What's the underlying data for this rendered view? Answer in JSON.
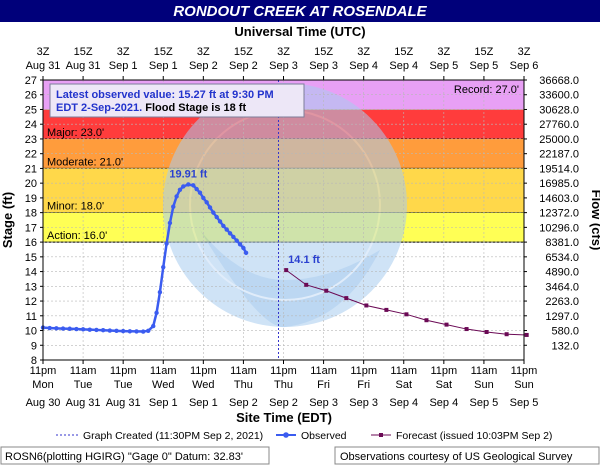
{
  "header": {
    "title": "RONDOUT CREEK AT ROSENDALE"
  },
  "axes": {
    "top_title": "Universal Time (UTC)",
    "bottom_title": "Site Time (EDT)",
    "left_title": "Stage (ft)",
    "right_title": "Flow (cfs)"
  },
  "info_box": {
    "line1": "Latest observed value: 15.27 ft at 9:30 PM",
    "line2a": "EDT 2-Sep-2021.",
    "line2b": " Flood Stage is 18 ft"
  },
  "record_label": "Record: 27.0'",
  "thresholds": [
    {
      "name": "Major: 23.0'",
      "stage": 23.0,
      "upper": 27.0,
      "color": "#ff3c3c"
    },
    {
      "name": "Moderate: 21.0'",
      "stage": 21.0,
      "upper": 23.0,
      "color": "#ff9c3c"
    },
    {
      "name": "Minor: 18.0'",
      "stage": 18.0,
      "upper": 21.0,
      "color": "#ffd84a"
    },
    {
      "name": "Action: 16.0'",
      "stage": 16.0,
      "upper": 18.0,
      "color": "#ffff55"
    }
  ],
  "colors": {
    "title_bar": "#00007a",
    "record_band": "#e8a0f5",
    "observed": "#3b5cf0",
    "forecast": "#6b0a55",
    "chart_frame": "#000000"
  },
  "chart_data": {
    "type": "line",
    "title": "RONDOUT CREEK AT ROSENDALE",
    "xlabel": "Site Time (EDT)",
    "ylabel": "Stage (ft)",
    "y2label": "Flow (cfs)",
    "x2label": "Universal Time (UTC)",
    "ylim": [
      8,
      27
    ],
    "grid": true,
    "x_ticks_bottom": [
      {
        "t1": "11pm",
        "t2": "Mon",
        "t3": "Aug 30"
      },
      {
        "t1": "11am",
        "t2": "Tue",
        "t3": "Aug 31"
      },
      {
        "t1": "11pm",
        "t2": "Tue",
        "t3": "Aug 31"
      },
      {
        "t1": "11am",
        "t2": "Wed",
        "t3": "Sep 1"
      },
      {
        "t1": "11pm",
        "t2": "Wed",
        "t3": "Sep 1"
      },
      {
        "t1": "11am",
        "t2": "Thu",
        "t3": "Sep 2"
      },
      {
        "t1": "11pm",
        "t2": "Thu",
        "t3": "Sep 2"
      },
      {
        "t1": "11am",
        "t2": "Fri",
        "t3": "Sep 3"
      },
      {
        "t1": "11pm",
        "t2": "Fri",
        "t3": "Sep 3"
      },
      {
        "t1": "11am",
        "t2": "Sat",
        "t3": "Sep 4"
      },
      {
        "t1": "11pm",
        "t2": "Sat",
        "t3": "Sep 4"
      },
      {
        "t1": "11am",
        "t2": "Sun",
        "t3": "Sep 5"
      },
      {
        "t1": "11pm",
        "t2": "Sun",
        "t3": "Sep 5"
      }
    ],
    "x_ticks_top": [
      {
        "t1": "3Z",
        "t2": "Aug 31"
      },
      {
        "t1": "15Z",
        "t2": "Aug 31"
      },
      {
        "t1": "3Z",
        "t2": "Sep 1"
      },
      {
        "t1": "15Z",
        "t2": "Sep 1"
      },
      {
        "t1": "3Z",
        "t2": "Sep 2"
      },
      {
        "t1": "15Z",
        "t2": "Sep 2"
      },
      {
        "t1": "3Z",
        "t2": "Sep 3"
      },
      {
        "t1": "15Z",
        "t2": "Sep 3"
      },
      {
        "t1": "3Z",
        "t2": "Sep 4"
      },
      {
        "t1": "15Z",
        "t2": "Sep 4"
      },
      {
        "t1": "3Z",
        "t2": "Sep 5"
      },
      {
        "t1": "15Z",
        "t2": "Sep 5"
      },
      {
        "t1": "3Z",
        "t2": "Sep 6"
      }
    ],
    "y_ticks": [
      8,
      9,
      10,
      11,
      12,
      13,
      14,
      15,
      16,
      17,
      18,
      19,
      20,
      21,
      22,
      23,
      24,
      25,
      26,
      27
    ],
    "flow_ticks": [
      {
        "stage": 9,
        "flow": "132.0"
      },
      {
        "stage": 10,
        "flow": "580.0"
      },
      {
        "stage": 11,
        "flow": "1297.0"
      },
      {
        "stage": 12,
        "flow": "2263.0"
      },
      {
        "stage": 13,
        "flow": "3464.0"
      },
      {
        "stage": 14,
        "flow": "4890.0"
      },
      {
        "stage": 15,
        "flow": "6534.0"
      },
      {
        "stage": 16,
        "flow": "8381.0"
      },
      {
        "stage": 17,
        "flow": "10296.0"
      },
      {
        "stage": 18,
        "flow": "12372.0"
      },
      {
        "stage": 19,
        "flow": "14603.0"
      },
      {
        "stage": 20,
        "flow": "16985.0"
      },
      {
        "stage": 21,
        "flow": "19514.0"
      },
      {
        "stage": 22,
        "flow": "22187.0"
      },
      {
        "stage": 23,
        "flow": "25000.0"
      },
      {
        "stage": 24,
        "flow": "27760.0"
      },
      {
        "stage": 25,
        "flow": "30628.0"
      },
      {
        "stage": 26,
        "flow": "33600.0"
      },
      {
        "stage": 27,
        "flow": "36668.0"
      }
    ],
    "observed_label": "19.91 ft",
    "observed_peak": {
      "t": 43.5,
      "stage": 19.91
    },
    "forecast_label": "14.1 ft",
    "forecast_first": {
      "t": 72.8,
      "stage": 14.1
    },
    "graph_created_t": 70.5,
    "series": [
      {
        "name": "Observed",
        "points": [
          [
            0,
            10.2
          ],
          [
            2,
            10.17
          ],
          [
            4,
            10.15
          ],
          [
            6,
            10.13
          ],
          [
            8,
            10.12
          ],
          [
            10,
            10.1
          ],
          [
            12,
            10.08
          ],
          [
            14,
            10.06
          ],
          [
            16,
            10.04
          ],
          [
            18,
            10.02
          ],
          [
            20,
            10.0
          ],
          [
            22,
            9.98
          ],
          [
            24,
            9.96
          ],
          [
            26,
            9.95
          ],
          [
            28,
            9.94
          ],
          [
            30,
            9.93
          ],
          [
            31.5,
            9.98
          ],
          [
            33,
            10.3
          ],
          [
            34,
            11.2
          ],
          [
            35,
            12.6
          ],
          [
            36,
            14.3
          ],
          [
            37,
            15.9
          ],
          [
            38,
            17.3
          ],
          [
            39,
            18.4
          ],
          [
            40,
            19.1
          ],
          [
            41,
            19.55
          ],
          [
            42,
            19.78
          ],
          [
            43.5,
            19.91
          ],
          [
            45,
            19.85
          ],
          [
            46,
            19.6
          ],
          [
            47,
            19.35
          ],
          [
            48,
            19.0
          ],
          [
            49,
            18.7
          ],
          [
            50,
            18.35
          ],
          [
            51,
            18.0
          ],
          [
            52,
            17.7
          ],
          [
            53,
            17.4
          ],
          [
            54,
            17.1
          ],
          [
            55,
            16.85
          ],
          [
            56,
            16.6
          ],
          [
            57,
            16.35
          ],
          [
            58,
            16.1
          ],
          [
            59,
            15.85
          ],
          [
            60,
            15.6
          ],
          [
            60.8,
            15.27
          ]
        ]
      },
      {
        "name": "Forecast (issued 10:03PM Sep 2)",
        "points": [
          [
            72.8,
            14.1
          ],
          [
            78.8,
            13.1
          ],
          [
            84.8,
            12.7
          ],
          [
            90.8,
            12.2
          ],
          [
            96.8,
            11.7
          ],
          [
            102.8,
            11.4
          ],
          [
            108.8,
            11.1
          ],
          [
            114.8,
            10.7
          ],
          [
            120.8,
            10.4
          ],
          [
            126.8,
            10.1
          ],
          [
            132.8,
            9.9
          ],
          [
            138.8,
            9.75
          ],
          [
            144.8,
            9.7
          ]
        ]
      }
    ]
  },
  "legend": {
    "created": "Graph Created (11:30PM Sep 2, 2021)",
    "observed": "Observed",
    "forecast": "Forecast (issued 10:03PM Sep 2)"
  },
  "footer": {
    "left": "ROSN6(plotting HGIRG) \"Gage 0\" Datum: 32.83'",
    "right": "Observations courtesy of US Geological Survey"
  }
}
